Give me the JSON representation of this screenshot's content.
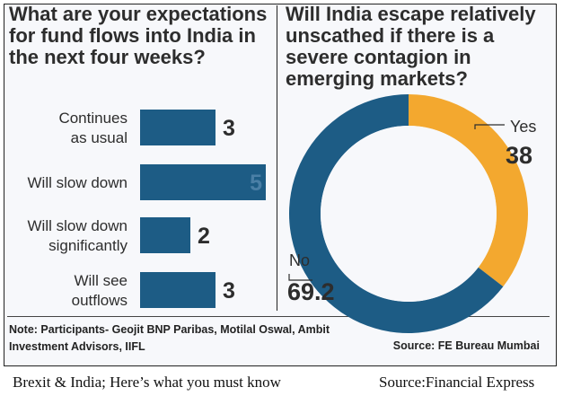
{
  "left_panel": {
    "title": "What are your expectations for fund flows into India in the next four weeks?"
  },
  "right_panel": {
    "title": "Will India escape relatively unscathed if there is a severe contagion in emerging markets?"
  },
  "footer": {
    "note": "Note: Participants- Geojit BNP Paribas, Motilal Oswal, Ambit Investment Advisors, IIFL",
    "source": "Source: FE Bureau Mumbai"
  },
  "caption": {
    "left": "Brexit & India; Here’s what you must know",
    "right": "Source:Financial Express"
  },
  "colors": {
    "bar": "#1d5c85",
    "yes": "#f3a82f",
    "no": "#1d5c85",
    "text": "#2d2d2d"
  },
  "chart_data": [
    {
      "type": "bar",
      "orientation": "horizontal",
      "categories": [
        [
          "Continues",
          "as usual"
        ],
        [
          "Will slow down"
        ],
        [
          "Will slow down",
          "significantly"
        ],
        [
          "Will see",
          "outflows"
        ]
      ],
      "values": [
        3,
        5,
        2,
        3
      ],
      "value_labels": [
        "3",
        "5",
        "2",
        "3"
      ],
      "xlim": [
        0,
        5
      ],
      "grid": false
    },
    {
      "type": "pie",
      "style": "donut",
      "slices": [
        {
          "label": "Yes",
          "value": 38,
          "value_label": "38",
          "color": "#f3a82f"
        },
        {
          "label": "No",
          "value": 69.2,
          "value_label": "69.2",
          "color": "#1d5c85"
        }
      ]
    }
  ]
}
